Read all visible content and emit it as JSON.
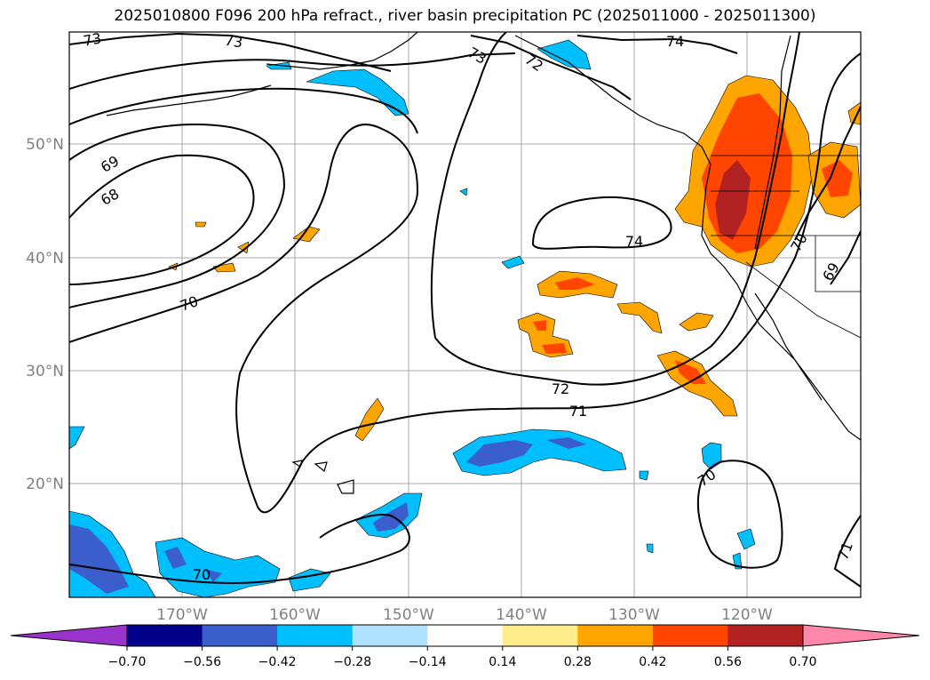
{
  "title": "2025010800 F096 200 hPa refract., river basin precipitation PC (2025011000 - 2025011300)",
  "map": {
    "lon_labels": [
      "170°W",
      "160°W",
      "150°W",
      "140°W",
      "130°W",
      "120°W"
    ],
    "lat_labels": [
      "50°N",
      "40°N",
      "30°N",
      "20°N"
    ],
    "contour_labels": [
      {
        "text": "73"
      },
      {
        "text": "73"
      },
      {
        "text": "73"
      },
      {
        "text": "72"
      },
      {
        "text": "74"
      },
      {
        "text": "69"
      },
      {
        "text": "68"
      },
      {
        "text": "70"
      },
      {
        "text": "74"
      },
      {
        "text": "72"
      },
      {
        "text": "71"
      },
      {
        "text": "70"
      },
      {
        "text": "70"
      },
      {
        "text": "71"
      },
      {
        "text": "70"
      },
      {
        "text": "69"
      }
    ]
  },
  "colorbar": {
    "ticks": [
      "−0.70",
      "−0.56",
      "−0.42",
      "−0.28",
      "−0.14",
      "0.14",
      "0.28",
      "0.42",
      "0.56",
      "0.70"
    ],
    "colors": [
      "#9933cc",
      "#00008b",
      "#3a5fcd",
      "#00bfff",
      "#b0e2ff",
      "#ffffff",
      "#ffec8b",
      "#ffa500",
      "#ff4500",
      "#b22222",
      "#ff88aa"
    ]
  }
}
